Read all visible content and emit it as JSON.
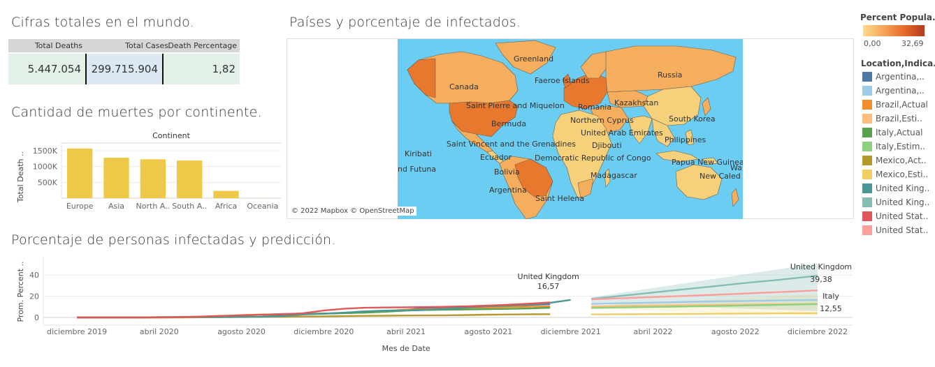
{
  "totals": {
    "title": "Cifras totales en el mundo.",
    "columns": [
      {
        "header": "Total Deaths",
        "value": "5.447.054"
      },
      {
        "header": "Total Cases",
        "value": "299.715.904"
      },
      {
        "header": "Death Percentage",
        "value": "1,82"
      }
    ]
  },
  "continent_chart": {
    "title": "Cantidad de muertes por continente.",
    "header": "Continent",
    "ylabel": "Total Death ..",
    "yticks": [
      "1500K",
      "1000K",
      "500K"
    ]
  },
  "map": {
    "title": "Países y porcentaje de infectados.",
    "attribution": "© 2022 Mapbox © OpenStreetMap",
    "labels": [
      "Greenland",
      "Faeroe Islands",
      "Russia",
      "Canada",
      "Romania",
      "Kazakhstan",
      "Saint Pierre and Miquelon",
      "Northern Cyprus",
      "South Korea",
      "Bermuda",
      "United Arab Emirates",
      "Philippines",
      "Saint Vincent and the Grenadines",
      "Djibouti",
      "Kiribati",
      "Ecuador",
      "Democratic Republic of Congo",
      "Papua New Guinea",
      "nd Futuna",
      "Wallis a",
      "Bolivia",
      "Madagascar",
      "New Caled",
      "Argentina",
      "Saint Helena"
    ],
    "colors": {
      "ocean": "#6ccdf2",
      "low": "#f6d07a",
      "mid": "#f4ae5e",
      "high": "#e9782f",
      "border": "#6d5a45"
    }
  },
  "color_legend": {
    "title": "Percent Popula..",
    "min": "0,00",
    "max": "32,69"
  },
  "series_legend": {
    "title": "Location,Indica..",
    "items": [
      {
        "label": "Argentina,..",
        "color": "#4e79a7"
      },
      {
        "label": "Argentina,..",
        "color": "#a0cbe8"
      },
      {
        "label": "Brazil,Actual",
        "color": "#f28e2b"
      },
      {
        "label": "Brazil,Esti..",
        "color": "#ffbe7d"
      },
      {
        "label": "Italy,Actual",
        "color": "#59a14f"
      },
      {
        "label": "Italy,Estim..",
        "color": "#8cd17d"
      },
      {
        "label": "Mexico,Act..",
        "color": "#b6992d"
      },
      {
        "label": "Mexico,Esti..",
        "color": "#f1ce63"
      },
      {
        "label": "United King..",
        "color": "#499894"
      },
      {
        "label": "United King..",
        "color": "#86bcb6"
      },
      {
        "label": "United Stat..",
        "color": "#e15759"
      },
      {
        "label": "United Stat..",
        "color": "#ff9d9a"
      }
    ]
  },
  "line_chart": {
    "title": "Porcentaje de personas infectadas y predicción.",
    "ylabel": "Prom. Percent ..",
    "xlabel": "Mes de Date",
    "annotations": [
      {
        "name": "United Kingdom",
        "value": "16,57"
      },
      {
        "name": "United Kingdom",
        "value": "39,38"
      },
      {
        "name": "Italy",
        "value": "12,55"
      }
    ]
  },
  "chart_data": [
    {
      "type": "bar",
      "title": "Continent",
      "categories": [
        "Europe",
        "Asia",
        "North A..",
        "South A..",
        "Africa",
        "Oceania"
      ],
      "values": [
        1570000,
        1280000,
        1230000,
        1190000,
        230000,
        3000
      ],
      "xlabel": "",
      "ylabel": "Total Death ..",
      "ylim": [
        0,
        1700000
      ],
      "yticks": [
        500000,
        1000000,
        1500000
      ],
      "color": "#eec947",
      "grid": true
    },
    {
      "type": "line",
      "xlabel": "Mes de Date",
      "ylabel": "Prom. Percent ..",
      "x_ticks": [
        "diciembre 2019",
        "abril 2020",
        "agosto 2020",
        "diciembre 2020",
        "abril 2021",
        "agosto 2021",
        "diciembre 2021",
        "abril 2022",
        "agosto 2022",
        "diciembre 2022"
      ],
      "y_ticks": [
        0,
        20,
        40
      ],
      "ylim": [
        -2,
        52
      ],
      "x": [
        0,
        1,
        2,
        3,
        4,
        5,
        6,
        7,
        8,
        9,
        10,
        11,
        12,
        13,
        14,
        15,
        16,
        17,
        18,
        19,
        20,
        21,
        22,
        23,
        24,
        25,
        26,
        27,
        28,
        29,
        30,
        31,
        32,
        33,
        34,
        35,
        36
      ],
      "series": [
        {
          "name": "Argentina,..",
          "color": "#4e79a7",
          "values": [
            0,
            0,
            0,
            0,
            0,
            0.1,
            0.5,
            1.1,
            1.8,
            2.6,
            3.3,
            3.5,
            3.7,
            4.1,
            4.6,
            5.6,
            7.3,
            8.8,
            9.6,
            10,
            10.3,
            11,
            11.8,
            12.5,
            null,
            null,
            null,
            null,
            null,
            null,
            null,
            null,
            null,
            null,
            null,
            null,
            null
          ]
        },
        {
          "name": "Brazil,Actual",
          "color": "#f28e2b",
          "values": [
            0,
            0,
            0,
            0,
            0,
            0.2,
            0.6,
            1.3,
            2.2,
            2.8,
            3.0,
            3.2,
            3.6,
            4.2,
            5.2,
            6.3,
            7.2,
            7.7,
            8.3,
            9.0,
            9.4,
            9.9,
            10.2,
            10.4,
            null,
            null,
            null,
            null,
            null,
            null,
            null,
            null,
            null,
            null,
            null,
            null,
            null
          ]
        },
        {
          "name": "Italy,Actual",
          "color": "#59a14f",
          "values": [
            0,
            0,
            0,
            0,
            0.3,
            0.4,
            0.5,
            0.5,
            0.5,
            0.7,
            1.8,
            3.0,
            3.5,
            4.0,
            4.5,
            5.4,
            6.4,
            7.0,
            7.3,
            7.5,
            7.8,
            8.1,
            8.5,
            9.2,
            null,
            null,
            null,
            null,
            null,
            null,
            null,
            null,
            null,
            null,
            null,
            null,
            null
          ]
        },
        {
          "name": "Mexico,Act..",
          "color": "#b6992d",
          "values": [
            0,
            0,
            0,
            0,
            0,
            0,
            0.1,
            0.2,
            0.4,
            0.5,
            0.6,
            0.8,
            1.0,
            1.2,
            1.5,
            1.6,
            1.8,
            1.9,
            2.0,
            2.3,
            2.6,
            2.8,
            3.0,
            3.1,
            null,
            null,
            null,
            null,
            null,
            null,
            null,
            null,
            null,
            null,
            null,
            null,
            null
          ]
        },
        {
          "name": "United King..",
          "color": "#499894",
          "values": [
            0,
            0,
            0,
            0,
            0.2,
            0.4,
            0.4,
            0.4,
            0.5,
            0.6,
            1.3,
            2.8,
            3.5,
            4.5,
            5.8,
            6.4,
            6.7,
            7.1,
            8.0,
            9.5,
            10.6,
            11.2,
            12.2,
            13.8,
            16.57,
            null,
            null,
            null,
            null,
            null,
            null,
            null,
            null,
            null,
            null,
            null,
            null
          ]
        },
        {
          "name": "United Stat..",
          "color": "#e15759",
          "values": [
            0,
            0,
            0,
            0,
            0.1,
            0.3,
            0.8,
            1.5,
            2.0,
            2.5,
            3.0,
            4.0,
            6.5,
            8.3,
            9.1,
            9.4,
            9.6,
            9.8,
            10.1,
            10.5,
            11.2,
            12.0,
            13.0,
            14.2,
            null,
            null,
            null,
            null,
            null,
            null,
            null,
            null,
            null,
            null,
            null,
            null,
            null
          ]
        },
        {
          "name": "Argentina,..",
          "color": "#a0cbe8",
          "values": [
            null,
            null,
            null,
            null,
            null,
            null,
            null,
            null,
            null,
            null,
            null,
            null,
            null,
            null,
            null,
            null,
            null,
            null,
            null,
            null,
            null,
            null,
            null,
            null,
            null,
            12.7,
            13.2,
            13.6,
            14.0,
            14.4,
            14.8,
            15.1,
            15.4,
            15.7,
            16.0,
            16.3,
            16.5
          ]
        },
        {
          "name": "Brazil,Esti..",
          "color": "#ffbe7d",
          "values": [
            null,
            null,
            null,
            null,
            null,
            null,
            null,
            null,
            null,
            null,
            null,
            null,
            null,
            null,
            null,
            null,
            null,
            null,
            null,
            null,
            null,
            null,
            null,
            null,
            null,
            10.5,
            10.8,
            11.0,
            11.2,
            11.4,
            11.6,
            11.8,
            12.0,
            12.2,
            12.4,
            12.6,
            12.8
          ]
        },
        {
          "name": "Italy,Estim..",
          "color": "#8cd17d",
          "values": [
            null,
            null,
            null,
            null,
            null,
            null,
            null,
            null,
            null,
            null,
            null,
            null,
            null,
            null,
            null,
            null,
            null,
            null,
            null,
            null,
            null,
            null,
            null,
            null,
            null,
            9.0,
            9.3,
            9.6,
            9.9,
            10.2,
            10.5,
            10.8,
            11.1,
            11.5,
            11.8,
            12.2,
            12.55
          ]
        },
        {
          "name": "Mexico,Esti..",
          "color": "#f1ce63",
          "values": [
            null,
            null,
            null,
            null,
            null,
            null,
            null,
            null,
            null,
            null,
            null,
            null,
            null,
            null,
            null,
            null,
            null,
            null,
            null,
            null,
            null,
            null,
            null,
            null,
            null,
            2.9,
            3.0,
            3.1,
            3.2,
            3.3,
            3.4,
            3.5,
            3.6,
            3.7,
            3.8,
            3.9,
            4.0
          ]
        },
        {
          "name": "United King..",
          "color": "#86bcb6",
          "values": [
            null,
            null,
            null,
            null,
            null,
            null,
            null,
            null,
            null,
            null,
            null,
            null,
            null,
            null,
            null,
            null,
            null,
            null,
            null,
            null,
            null,
            null,
            null,
            null,
            null,
            17.5,
            19.5,
            21.5,
            23.5,
            25.5,
            27.5,
            29.5,
            31.5,
            33.5,
            35.3,
            37.3,
            39.38
          ]
        },
        {
          "name": "United Stat..",
          "color": "#ff9d9a",
          "values": [
            null,
            null,
            null,
            null,
            null,
            null,
            null,
            null,
            null,
            null,
            null,
            null,
            null,
            null,
            null,
            null,
            null,
            null,
            null,
            null,
            null,
            null,
            null,
            null,
            null,
            17.0,
            17.8,
            18.5,
            19.2,
            19.9,
            20.6,
            21.4,
            22.2,
            23.0,
            23.8,
            24.7,
            25.5
          ]
        }
      ]
    }
  ]
}
